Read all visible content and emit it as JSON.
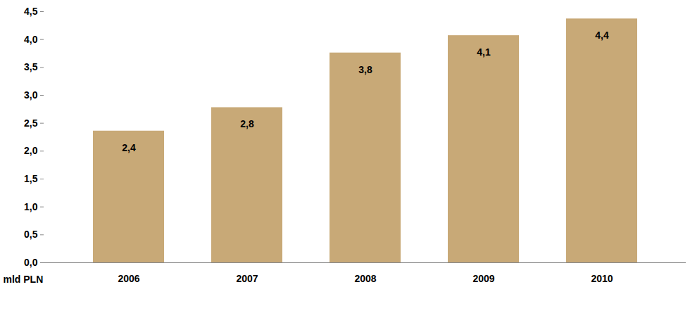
{
  "chart_data": {
    "type": "bar",
    "categories": [
      "2006",
      "2007",
      "2008",
      "2009",
      "2010"
    ],
    "values": [
      2.36,
      2.78,
      3.76,
      4.07,
      4.37
    ],
    "value_labels": [
      "2,4",
      "2,8",
      "3,8",
      "4,1",
      "4,4"
    ],
    "color": "#c8a977",
    "xlabel": "mld PLN",
    "ylim": [
      0,
      4.5
    ],
    "yticks": [
      {
        "value": 0,
        "label": "0,0"
      },
      {
        "value": 0.5,
        "label": "0,5"
      },
      {
        "value": 1,
        "label": "1,0"
      },
      {
        "value": 1.5,
        "label": "1,5"
      },
      {
        "value": 2,
        "label": "2,0"
      },
      {
        "value": 2.5,
        "label": "2,5"
      },
      {
        "value": 3,
        "label": "3,0"
      },
      {
        "value": 3.5,
        "label": "3,5"
      },
      {
        "value": 4,
        "label": "4,0"
      },
      {
        "value": 4.5,
        "label": "4,5"
      }
    ],
    "grid": false,
    "data_labels": true
  }
}
